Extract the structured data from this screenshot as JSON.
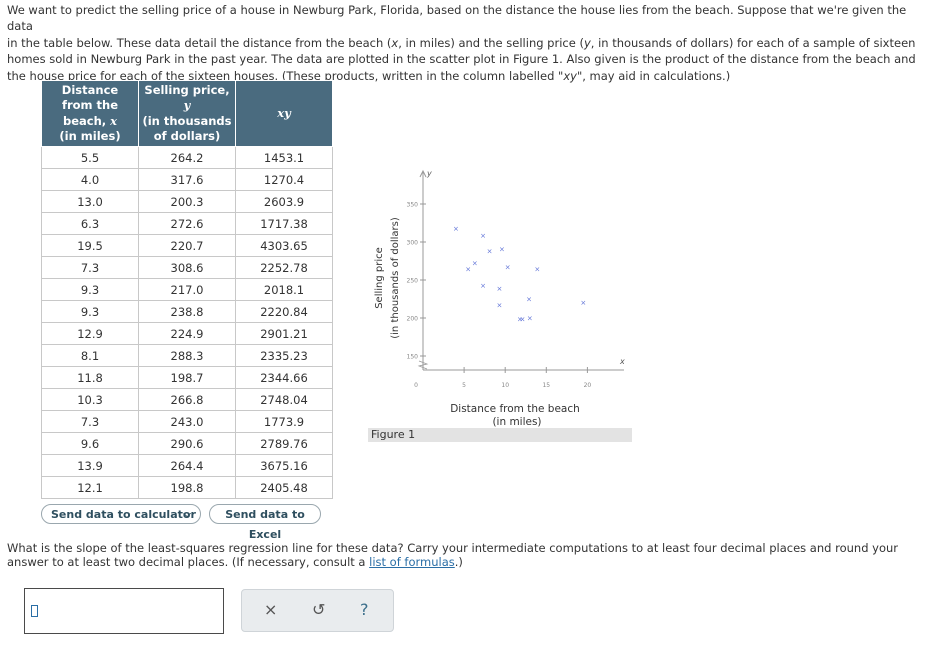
{
  "intro": {
    "p1": "We want to predict the selling price of a house in Newburg Park, Florida, based on the distance the house lies from the beach. Suppose that we're given the data",
    "p2": "in the table below. These data detail the distance from the beach (",
    "x": "x",
    "p3": ", in miles) and the selling price (",
    "y": "y",
    "p4": ", in thousands of dollars) for each of a sample of sixteen",
    "p5": "homes sold in Newburg Park in the past year. The data are plotted in the scatter plot in Figure 1. Also given is the product of the distance from the beach and",
    "p6": "the house price for each of the sixteen houses. (These products, written in the column labelled \"",
    "xy": "xy",
    "p7": "\", may aid in calculations.)"
  },
  "table": {
    "h1_l1": "Distance",
    "h1_l2": "from the",
    "h1_l3": "beach, ",
    "h1_var": "x",
    "h1_l4": "(in miles)",
    "h2_l1": "Selling price,",
    "h2_var": "y",
    "h2_l2": "(in thousands",
    "h2_l3": "of dollars)",
    "h3_var": "xy",
    "rows": [
      [
        "5.5",
        "264.2",
        "1453.1"
      ],
      [
        "4.0",
        "317.6",
        "1270.4"
      ],
      [
        "13.0",
        "200.3",
        "2603.9"
      ],
      [
        "6.3",
        "272.6",
        "1717.38"
      ],
      [
        "19.5",
        "220.7",
        "4303.65"
      ],
      [
        "7.3",
        "308.6",
        "2252.78"
      ],
      [
        "9.3",
        "217.0",
        "2018.1"
      ],
      [
        "9.3",
        "238.8",
        "2220.84"
      ],
      [
        "12.9",
        "224.9",
        "2901.21"
      ],
      [
        "8.1",
        "288.3",
        "2335.23"
      ],
      [
        "11.8",
        "198.7",
        "2344.66"
      ],
      [
        "10.3",
        "266.8",
        "2748.04"
      ],
      [
        "7.3",
        "243.0",
        "1773.9"
      ],
      [
        "9.6",
        "290.6",
        "2789.76"
      ],
      [
        "13.9",
        "264.4",
        "3675.16"
      ],
      [
        "12.1",
        "198.8",
        "2405.48"
      ]
    ]
  },
  "buttons": {
    "calc": "Send data to calculator",
    "excel": "Send data to Excel"
  },
  "chart_data": {
    "type": "scatter",
    "ylabel_l1": "Selling price",
    "ylabel_l2": "(in thousands of dollars)",
    "xlabel_l1": "Distance from the beach",
    "xlabel_l2": "(in miles)",
    "x_axis_var": "x",
    "y_axis_var": "y",
    "x_ticks": [
      0,
      5,
      10,
      15,
      20
    ],
    "y_ticks": [
      150,
      200,
      250,
      300,
      350
    ],
    "y_zero_label": "0",
    "xlim": [
      0,
      22
    ],
    "ylim": [
      150,
      370
    ],
    "points": [
      [
        5.5,
        264.2
      ],
      [
        4.0,
        317.6
      ],
      [
        13.0,
        200.3
      ],
      [
        6.3,
        272.6
      ],
      [
        19.5,
        220.7
      ],
      [
        7.3,
        308.6
      ],
      [
        9.3,
        217.0
      ],
      [
        9.3,
        238.8
      ],
      [
        12.9,
        224.9
      ],
      [
        8.1,
        288.3
      ],
      [
        11.8,
        198.7
      ],
      [
        10.3,
        266.8
      ],
      [
        7.3,
        243.0
      ],
      [
        9.6,
        290.6
      ],
      [
        13.9,
        264.4
      ],
      [
        12.1,
        198.8
      ]
    ],
    "marker": "×",
    "marker_color": "#5b6fd6",
    "figure_label": "Figure 1"
  },
  "question": {
    "text": "What is the slope of the least-squares regression line for these data? Carry your intermediate computations to at least four decimal places and round your",
    "text2": "answer to at least two decimal places. (If necessary, consult a ",
    "link": "list of formulas",
    "text3": ".)"
  },
  "tools": {
    "clear": "×",
    "undo": "↺",
    "help": "?"
  }
}
